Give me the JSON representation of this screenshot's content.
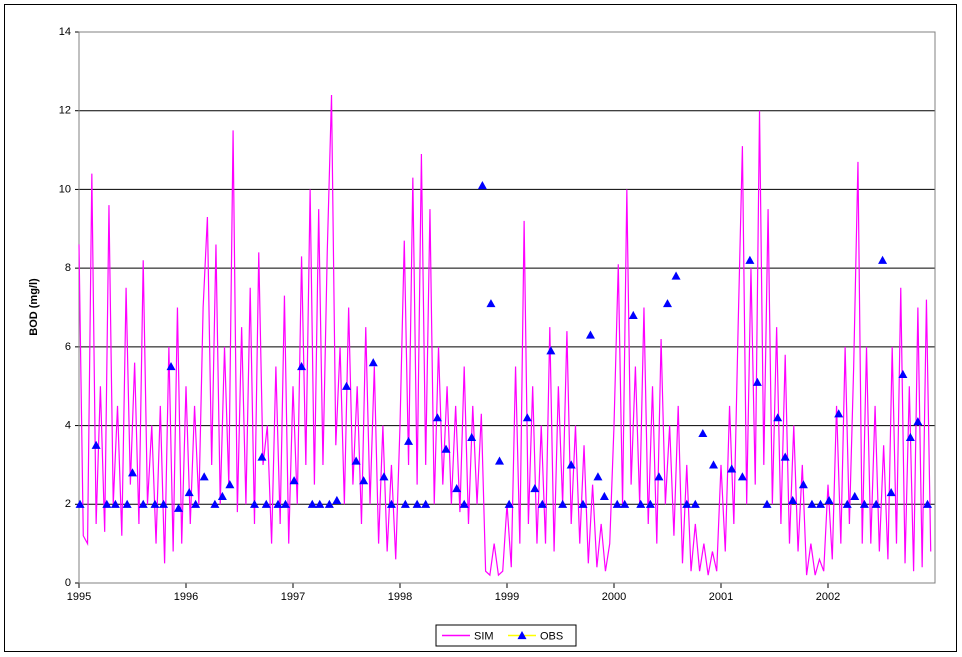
{
  "chart_data": {
    "type": "line",
    "ylabel": "BOD (mg/l)",
    "xlim": [
      1995,
      2003
    ],
    "xticks": [
      1995,
      1996,
      1997,
      1998,
      1999,
      2000,
      2001,
      2002
    ],
    "ylim": [
      0,
      14
    ],
    "yticks": [
      0,
      2,
      4,
      6,
      8,
      10,
      12,
      14
    ],
    "grid": true,
    "legend": "bottom",
    "series": [
      {
        "name": "SIM",
        "color": "#ff00ff",
        "marker": "none",
        "x": [
          1995,
          1995.04,
          1995.08,
          1995.12,
          1995.16,
          1995.2,
          1995.24,
          1995.28,
          1995.32,
          1995.36,
          1995.4,
          1995.44,
          1995.48,
          1995.52,
          1995.56,
          1995.6,
          1995.64,
          1995.68,
          1995.72,
          1995.76,
          1995.8,
          1995.84,
          1995.88,
          1995.92,
          1995.96,
          1996,
          1996.04,
          1996.08,
          1996.12,
          1996.16,
          1996.2,
          1996.24,
          1996.28,
          1996.32,
          1996.36,
          1996.4,
          1996.44,
          1996.48,
          1996.52,
          1996.56,
          1996.6,
          1996.64,
          1996.68,
          1996.72,
          1996.76,
          1996.8,
          1996.84,
          1996.88,
          1996.92,
          1996.96,
          1997,
          1997.04,
          1997.08,
          1997.12,
          1997.16,
          1997.2,
          1997.24,
          1997.28,
          1997.32,
          1997.36,
          1997.4,
          1997.44,
          1997.48,
          1997.52,
          1997.56,
          1997.6,
          1997.64,
          1997.68,
          1997.72,
          1997.76,
          1997.8,
          1997.84,
          1997.88,
          1997.92,
          1997.96,
          1998,
          1998.04,
          1998.08,
          1998.12,
          1998.16,
          1998.2,
          1998.24,
          1998.28,
          1998.32,
          1998.36,
          1998.4,
          1998.44,
          1998.48,
          1998.52,
          1998.56,
          1998.6,
          1998.64,
          1998.68,
          1998.72,
          1998.76,
          1998.8,
          1998.84,
          1998.88,
          1998.92,
          1998.96,
          1999,
          1999.04,
          1999.08,
          1999.12,
          1999.16,
          1999.2,
          1999.24,
          1999.28,
          1999.32,
          1999.36,
          1999.4,
          1999.44,
          1999.48,
          1999.52,
          1999.56,
          1999.6,
          1999.64,
          1999.68,
          1999.72,
          1999.76,
          1999.8,
          1999.84,
          1999.88,
          1999.92,
          1999.96,
          2000,
          2000.04,
          2000.08,
          2000.12,
          2000.16,
          2000.2,
          2000.24,
          2000.28,
          2000.32,
          2000.36,
          2000.4,
          2000.44,
          2000.48,
          2000.52,
          2000.56,
          2000.6,
          2000.64,
          2000.68,
          2000.72,
          2000.76,
          2000.8,
          2000.84,
          2000.88,
          2000.92,
          2000.96,
          2001,
          2001.04,
          2001.08,
          2001.12,
          2001.16,
          2001.2,
          2001.24,
          2001.28,
          2001.32,
          2001.36,
          2001.4,
          2001.44,
          2001.48,
          2001.52,
          2001.56,
          2001.6,
          2001.64,
          2001.68,
          2001.72,
          2001.76,
          2001.8,
          2001.84,
          2001.88,
          2001.92,
          2001.96,
          2002,
          2002.04,
          2002.08,
          2002.12,
          2002.16,
          2002.2,
          2002.24,
          2002.28,
          2002.32,
          2002.36,
          2002.4,
          2002.44,
          2002.48,
          2002.52,
          2002.56,
          2002.6,
          2002.64,
          2002.68,
          2002.72,
          2002.76,
          2002.8,
          2002.84,
          2002.88,
          2002.92,
          2002.96
        ],
        "values": [
          8.6,
          1.2,
          1.0,
          10.4,
          1.5,
          5.0,
          1.3,
          9.6,
          2.0,
          4.5,
          1.2,
          7.5,
          2.5,
          5.6,
          1.5,
          8.2,
          2.0,
          4.0,
          1.0,
          4.5,
          0.5,
          6.0,
          0.8,
          7.0,
          1.0,
          5.0,
          1.5,
          4.5,
          2.0,
          7.0,
          9.3,
          3.0,
          8.6,
          2.0,
          6.0,
          2.5,
          11.5,
          1.8,
          6.5,
          2.0,
          7.5,
          1.5,
          8.4,
          3.0,
          4.0,
          1.0,
          5.5,
          1.5,
          7.3,
          1.0,
          5.0,
          2.0,
          8.3,
          3.0,
          10.0,
          2.5,
          9.5,
          3.0,
          8.4,
          12.4,
          3.5,
          6.0,
          2.0,
          7.0,
          2.5,
          5.0,
          1.5,
          6.5,
          2.0,
          5.5,
          1.0,
          4.0,
          0.8,
          3.0,
          0.6,
          4.0,
          8.7,
          3.0,
          10.3,
          2.5,
          10.9,
          3.0,
          9.5,
          2.0,
          6.0,
          2.5,
          5.0,
          2.0,
          4.5,
          1.8,
          5.5,
          1.5,
          4.5,
          2.0,
          4.3,
          0.3,
          0.2,
          1.0,
          0.2,
          0.3,
          2.0,
          0.4,
          5.5,
          1.0,
          9.2,
          1.5,
          5.0,
          1.0,
          4.0,
          1.0,
          6.5,
          0.8,
          5.0,
          2.0,
          6.4,
          1.5,
          4.0,
          1.0,
          3.5,
          0.5,
          2.5,
          0.4,
          1.5,
          0.3,
          1.0,
          4.0,
          8.1,
          2.0,
          10.0,
          2.5,
          5.5,
          2.0,
          7.0,
          1.5,
          5.0,
          1.0,
          6.2,
          2.0,
          4.0,
          1.2,
          4.5,
          0.5,
          3.0,
          0.3,
          1.5,
          0.3,
          1.0,
          0.2,
          0.8,
          0.3,
          3.0,
          0.8,
          4.5,
          1.5,
          6.5,
          11.1,
          2.0,
          8.0,
          2.5,
          12.0,
          3.0,
          9.5,
          2.0,
          6.5,
          1.5,
          5.8,
          1.0,
          4.0,
          0.8,
          3.0,
          0.2,
          1.0,
          0.2,
          0.6,
          0.3,
          2.5,
          0.6,
          4.5,
          1.0,
          6.0,
          1.5,
          5.5,
          10.7,
          1.0,
          6.0,
          1.0,
          4.5,
          0.8,
          3.5,
          0.6,
          6.0,
          1.0,
          7.5,
          0.5,
          5.0,
          0.3,
          7.0,
          0.4,
          7.2,
          0.8
        ]
      },
      {
        "name": "OBS",
        "color": "#0000ff",
        "line_color": "#ffff00",
        "marker": "triangle",
        "x": [
          1995.01,
          1995.16,
          1995.26,
          1995.34,
          1995.45,
          1995.5,
          1995.6,
          1995.71,
          1995.79,
          1995.86,
          1995.93,
          1996.03,
          1996.09,
          1996.17,
          1996.27,
          1996.34,
          1996.41,
          1996.64,
          1996.71,
          1996.75,
          1996.86,
          1996.93,
          1997.01,
          1997.08,
          1997.18,
          1997.25,
          1997.34,
          1997.41,
          1997.5,
          1997.59,
          1997.66,
          1997.75,
          1997.85,
          1997.92,
          1998.05,
          1998.08,
          1998.16,
          1998.24,
          1998.35,
          1998.43,
          1998.53,
          1998.6,
          1998.67,
          1998.77,
          1998.85,
          1998.93,
          1999.02,
          1999.19,
          1999.26,
          1999.33,
          1999.41,
          1999.52,
          1999.6,
          1999.71,
          1999.78,
          1999.85,
          1999.91,
          2000.03,
          2000.1,
          2000.18,
          2000.25,
          2000.34,
          2000.42,
          2000.5,
          2000.58,
          2000.68,
          2000.76,
          2000.83,
          2000.93,
          2001.1,
          2001.2,
          2001.27,
          2001.34,
          2001.43,
          2001.53,
          2001.6,
          2001.67,
          2001.77,
          2001.85,
          2001.93,
          2002.01,
          2002.1,
          2002.18,
          2002.25,
          2002.34,
          2002.45,
          2002.51,
          2002.59,
          2002.7,
          2002.77,
          2002.84,
          2002.93
        ],
        "values": [
          2.0,
          3.5,
          2.0,
          2.0,
          2.0,
          2.8,
          2.0,
          2.0,
          2.0,
          5.5,
          1.9,
          2.3,
          2.0,
          2.7,
          2.0,
          2.2,
          2.5,
          2.0,
          3.2,
          2.0,
          2.0,
          2.0,
          2.6,
          5.5,
          2.0,
          2.0,
          2.0,
          2.1,
          5.0,
          3.1,
          2.6,
          5.6,
          2.7,
          2.0,
          2.0,
          3.6,
          2.0,
          2.0,
          4.2,
          3.4,
          2.4,
          2.0,
          3.7,
          10.1,
          7.1,
          3.1,
          2.0,
          4.2,
          2.4,
          2.0,
          5.9,
          2.0,
          3.0,
          2.0,
          6.3,
          2.7,
          2.2,
          2.0,
          2.0,
          6.8,
          2.0,
          2.0,
          2.7,
          7.1,
          7.8,
          2.0,
          2.0,
          3.8,
          3.0,
          2.9,
          2.7,
          8.2,
          5.1,
          2.0,
          4.2,
          3.2,
          2.1,
          2.5,
          2.0,
          2.0,
          2.1,
          4.3,
          2.0,
          2.2,
          2.0,
          2.0,
          8.2,
          2.3,
          5.3,
          3.7,
          4.1,
          2.0
        ]
      }
    ]
  }
}
